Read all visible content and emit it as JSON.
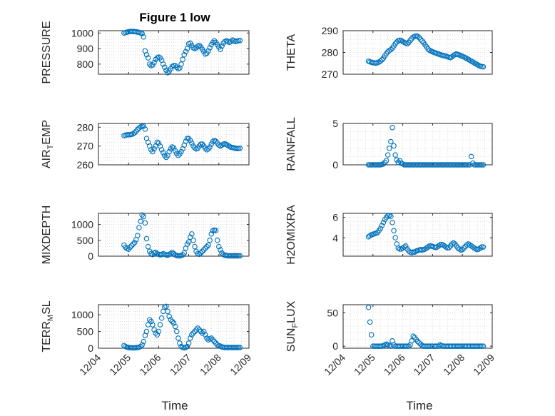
{
  "figure": {
    "title": "Figure 1 low",
    "xlabel": "Time"
  },
  "colors": {
    "marker": "#0072BD",
    "axis": "#262626",
    "grid": "#d9d9d9",
    "background": "#ffffff"
  },
  "chart_data": [
    {
      "type": "scatter",
      "id": "pressure",
      "ylabel": "PRESSURE",
      "ylim": [
        735,
        1015
      ],
      "yticks": [
        800,
        900,
        1000
      ],
      "xlim": [
        "12/04",
        "12/09"
      ],
      "xtick_labels": [],
      "grid": true,
      "x": [
        0.85,
        0.9,
        0.95,
        1.0,
        1.05,
        1.1,
        1.15,
        1.2,
        1.25,
        1.3,
        1.35,
        1.4,
        1.45,
        1.5,
        1.55,
        1.6,
        1.65,
        1.7,
        1.75,
        1.8,
        1.85,
        1.9,
        1.95,
        2.0,
        2.05,
        2.1,
        2.15,
        2.2,
        2.25,
        2.3,
        2.35,
        2.4,
        2.45,
        2.5,
        2.55,
        2.6,
        2.65,
        2.7,
        2.75,
        2.8,
        2.85,
        2.9,
        2.95,
        3.0,
        3.05,
        3.1,
        3.15,
        3.2,
        3.25,
        3.3,
        3.35,
        3.4,
        3.45,
        3.5,
        3.55,
        3.6,
        3.65,
        3.7,
        3.75,
        3.8,
        3.85,
        3.9,
        3.95,
        4.0,
        4.05,
        4.1,
        4.15,
        4.2,
        4.25,
        4.3,
        4.35,
        4.4,
        4.45,
        4.5,
        4.55,
        4.6,
        4.65,
        4.7
      ],
      "y": [
        1000,
        1003,
        1006,
        1008,
        1010,
        1010,
        1010,
        1009,
        1008,
        1006,
        1004,
        1001,
        996,
        975,
        885,
        860,
        840,
        800,
        790,
        795,
        810,
        830,
        840,
        845,
        840,
        825,
        800,
        780,
        760,
        745,
        755,
        770,
        785,
        790,
        790,
        780,
        770,
        775,
        800,
        830,
        860,
        880,
        900,
        930,
        935,
        920,
        905,
        900,
        905,
        915,
        920,
        910,
        895,
        880,
        865,
        870,
        885,
        905,
        925,
        940,
        950,
        940,
        925,
        910,
        895,
        915,
        935,
        945,
        950,
        945,
        940,
        945,
        955,
        950,
        945,
        948,
        950,
        952
      ],
      "series_name": ""
    },
    {
      "type": "scatter",
      "id": "theta",
      "ylabel": "THETA",
      "ylim": [
        270,
        290
      ],
      "yticks": [
        270,
        280,
        290
      ],
      "xlim": [
        "12/04",
        "12/09"
      ],
      "xtick_labels": [],
      "grid": true,
      "x": [
        0.85,
        0.9,
        0.95,
        1.0,
        1.05,
        1.1,
        1.15,
        1.2,
        1.25,
        1.3,
        1.35,
        1.4,
        1.45,
        1.5,
        1.55,
        1.6,
        1.65,
        1.7,
        1.75,
        1.8,
        1.85,
        1.9,
        1.95,
        2.0,
        2.05,
        2.1,
        2.15,
        2.2,
        2.25,
        2.3,
        2.35,
        2.4,
        2.45,
        2.5,
        2.55,
        2.6,
        2.65,
        2.7,
        2.75,
        2.8,
        2.85,
        2.9,
        2.95,
        3.0,
        3.05,
        3.1,
        3.15,
        3.2,
        3.25,
        3.3,
        3.35,
        3.4,
        3.45,
        3.5,
        3.55,
        3.6,
        3.65,
        3.7,
        3.75,
        3.8,
        3.85,
        3.9,
        3.95,
        4.0,
        4.05,
        4.1,
        4.15,
        4.2,
        4.25,
        4.3,
        4.35,
        4.4,
        4.45,
        4.5,
        4.55,
        4.6,
        4.65,
        4.7
      ],
      "y": [
        276.0,
        275.7,
        275.5,
        275.3,
        275.2,
        275.1,
        275.3,
        275.6,
        276.0,
        276.6,
        277.4,
        278.5,
        279.5,
        280.3,
        280.9,
        281.3,
        282.0,
        283.0,
        284.0,
        284.8,
        285.4,
        285.6,
        285.5,
        285.0,
        284.6,
        284.3,
        284.0,
        284.6,
        285.5,
        286.3,
        287.0,
        287.4,
        287.6,
        287.4,
        286.8,
        286.0,
        285.3,
        284.5,
        283.5,
        282.5,
        281.6,
        281.0,
        280.6,
        280.3,
        280.0,
        279.8,
        279.5,
        279.3,
        279.0,
        278.8,
        278.6,
        278.5,
        278.3,
        278.0,
        277.8,
        277.6,
        278.0,
        278.6,
        279.0,
        279.3,
        279.1,
        278.8,
        278.5,
        278.2,
        277.9,
        277.6,
        277.2,
        276.8,
        276.4,
        276.0,
        275.6,
        275.2,
        274.8,
        274.4,
        274.0,
        273.7,
        273.5,
        273.4
      ],
      "series_name": ""
    },
    {
      "type": "scatter",
      "id": "air_temp",
      "ylabel": "AIR_TEMP",
      "ylim": [
        260,
        282
      ],
      "yticks": [
        260,
        270,
        280
      ],
      "xlim": [
        "12/04",
        "12/09"
      ],
      "xtick_labels": [],
      "grid": true,
      "x": [
        0.85,
        0.9,
        0.95,
        1.0,
        1.05,
        1.1,
        1.15,
        1.2,
        1.25,
        1.3,
        1.35,
        1.4,
        1.45,
        1.5,
        1.55,
        1.6,
        1.65,
        1.7,
        1.75,
        1.8,
        1.85,
        1.9,
        1.95,
        2.0,
        2.05,
        2.1,
        2.15,
        2.2,
        2.25,
        2.3,
        2.35,
        2.4,
        2.45,
        2.5,
        2.55,
        2.6,
        2.65,
        2.7,
        2.75,
        2.8,
        2.85,
        2.9,
        2.95,
        3.0,
        3.05,
        3.1,
        3.15,
        3.2,
        3.25,
        3.3,
        3.35,
        3.4,
        3.45,
        3.5,
        3.55,
        3.6,
        3.65,
        3.7,
        3.75,
        3.8,
        3.85,
        3.9,
        3.95,
        4.0,
        4.05,
        4.1,
        4.15,
        4.2,
        4.25,
        4.3,
        4.35,
        4.4,
        4.45,
        4.5,
        4.55,
        4.6,
        4.65,
        4.7
      ],
      "y": [
        275.5,
        275.8,
        276.0,
        276.0,
        276.0,
        276.2,
        276.5,
        277.0,
        277.8,
        278.8,
        279.6,
        280.2,
        280.5,
        280.6,
        279.0,
        274.0,
        272.0,
        270.0,
        268.0,
        267.0,
        268.5,
        270.0,
        272.0,
        271.5,
        270.0,
        268.0,
        266.5,
        265.0,
        264.0,
        265.0,
        267.0,
        268.5,
        269.5,
        269.0,
        267.5,
        266.0,
        265.0,
        265.8,
        267.0,
        268.5,
        270.5,
        272.5,
        274.0,
        274.0,
        273.0,
        271.5,
        270.0,
        269.0,
        268.5,
        268.8,
        270.0,
        271.0,
        271.0,
        270.0,
        268.8,
        268.0,
        268.5,
        269.5,
        271.0,
        272.3,
        273.0,
        272.5,
        271.5,
        270.5,
        270.0,
        270.5,
        271.0,
        271.2,
        270.8,
        270.3,
        269.8,
        269.4,
        269.2,
        269.0,
        268.8,
        268.7,
        268.7,
        268.8
      ],
      "series_name": ""
    },
    {
      "type": "scatter",
      "id": "rainfall",
      "ylabel": "RAINFALL",
      "ylim": [
        0,
        5
      ],
      "yticks": [
        0,
        5
      ],
      "xlim": [
        "12/04",
        "12/09"
      ],
      "xtick_labels": [],
      "grid": true,
      "x": [
        0.85,
        0.9,
        0.95,
        1.0,
        1.05,
        1.1,
        1.15,
        1.2,
        1.25,
        1.3,
        1.35,
        1.4,
        1.45,
        1.5,
        1.55,
        1.6,
        1.65,
        1.7,
        1.75,
        1.8,
        1.85,
        1.9,
        1.95,
        2.0,
        2.05,
        2.1,
        2.15,
        2.2,
        2.25,
        2.3,
        2.35,
        2.4,
        2.45,
        2.5,
        2.55,
        2.6,
        2.65,
        2.7,
        2.75,
        2.8,
        2.85,
        2.9,
        2.95,
        3.0,
        3.05,
        3.1,
        3.15,
        3.2,
        3.25,
        3.3,
        3.35,
        3.4,
        3.45,
        3.5,
        3.55,
        3.6,
        3.65,
        3.7,
        3.75,
        3.8,
        3.85,
        3.9,
        3.95,
        4.0,
        4.05,
        4.1,
        4.15,
        4.2,
        4.25,
        4.3,
        4.35,
        4.4,
        4.45,
        4.5,
        4.55,
        4.6,
        4.65,
        4.7
      ],
      "y": [
        0,
        0,
        0,
        0,
        0,
        0,
        0,
        0,
        0,
        0.05,
        0.1,
        0.3,
        0.5,
        1.2,
        2.0,
        2.8,
        4.5,
        2.3,
        1.2,
        0.6,
        0.3,
        0.5,
        0.2,
        0.1,
        0,
        0,
        0,
        0,
        0,
        0,
        0,
        0,
        0,
        0,
        0,
        0,
        0,
        0,
        0,
        0,
        0,
        0,
        0,
        0,
        0,
        0,
        0,
        0,
        0,
        0,
        0,
        0,
        0,
        0,
        0,
        0,
        0,
        0,
        0,
        0,
        0,
        0,
        0,
        0,
        0,
        0,
        0,
        0,
        0,
        1.0,
        0.2,
        0,
        0,
        0,
        0,
        0,
        0,
        0
      ],
      "series_name": ""
    },
    {
      "type": "scatter",
      "id": "mixdepth",
      "ylabel": "MIXDEPTH",
      "ylim": [
        0,
        1350
      ],
      "yticks": [
        0,
        500,
        1000
      ],
      "xlim": [
        "12/04",
        "12/09"
      ],
      "xtick_labels": [],
      "grid": true,
      "x": [
        0.85,
        0.9,
        0.95,
        1.0,
        1.05,
        1.1,
        1.15,
        1.2,
        1.25,
        1.3,
        1.35,
        1.4,
        1.45,
        1.5,
        1.55,
        1.6,
        1.65,
        1.7,
        1.75,
        1.8,
        1.85,
        1.9,
        1.95,
        2.0,
        2.05,
        2.1,
        2.15,
        2.2,
        2.25,
        2.3,
        2.35,
        2.4,
        2.45,
        2.5,
        2.55,
        2.6,
        2.65,
        2.7,
        2.75,
        2.8,
        2.85,
        2.9,
        2.95,
        3.0,
        3.05,
        3.1,
        3.15,
        3.2,
        3.25,
        3.3,
        3.35,
        3.4,
        3.45,
        3.5,
        3.55,
        3.6,
        3.65,
        3.7,
        3.75,
        3.8,
        3.85,
        3.9,
        3.95,
        4.0,
        4.05,
        4.1,
        4.15,
        4.2,
        4.25,
        4.3,
        4.35,
        4.4,
        4.45,
        4.5,
        4.55,
        4.6,
        4.65,
        4.7
      ],
      "y": [
        350,
        280,
        240,
        220,
        280,
        330,
        380,
        430,
        520,
        650,
        900,
        1100,
        1300,
        1250,
        1050,
        550,
        300,
        150,
        80,
        50,
        100,
        120,
        80,
        60,
        40,
        50,
        80,
        60,
        40,
        30,
        60,
        80,
        120,
        80,
        40,
        20,
        10,
        10,
        20,
        40,
        100,
        250,
        380,
        450,
        600,
        700,
        500,
        300,
        150,
        80,
        60,
        100,
        150,
        200,
        250,
        300,
        350,
        500,
        700,
        800,
        820,
        810,
        500,
        300,
        200,
        100,
        50,
        30,
        20,
        10,
        10,
        10,
        10,
        10,
        10,
        10,
        10,
        10
      ],
      "series_name": ""
    },
    {
      "type": "scatter",
      "id": "h2omixra",
      "ylabel": "H2OMIXRA",
      "ylim": [
        2.2,
        6.4
      ],
      "yticks": [
        4,
        6
      ],
      "xlim": [
        "12/04",
        "12/09"
      ],
      "xtick_labels": [],
      "grid": true,
      "x": [
        0.85,
        0.9,
        0.95,
        1.0,
        1.05,
        1.1,
        1.15,
        1.2,
        1.25,
        1.3,
        1.35,
        1.4,
        1.45,
        1.5,
        1.55,
        1.6,
        1.65,
        1.7,
        1.75,
        1.8,
        1.85,
        1.9,
        1.95,
        2.0,
        2.05,
        2.1,
        2.15,
        2.2,
        2.25,
        2.3,
        2.35,
        2.4,
        2.45,
        2.5,
        2.55,
        2.6,
        2.65,
        2.7,
        2.75,
        2.8,
        2.85,
        2.9,
        2.95,
        3.0,
        3.05,
        3.1,
        3.15,
        3.2,
        3.25,
        3.3,
        3.35,
        3.4,
        3.45,
        3.5,
        3.55,
        3.6,
        3.65,
        3.7,
        3.75,
        3.8,
        3.85,
        3.9,
        3.95,
        4.0,
        4.05,
        4.1,
        4.15,
        4.2,
        4.25,
        4.3,
        4.35,
        4.4,
        4.45,
        4.5,
        4.55,
        4.6,
        4.65,
        4.7
      ],
      "y": [
        4.1,
        4.2,
        4.3,
        4.35,
        4.4,
        4.45,
        4.5,
        4.7,
        4.9,
        5.2,
        5.5,
        5.8,
        6.0,
        6.15,
        6.2,
        6.1,
        5.5,
        4.7,
        4.0,
        3.4,
        3.0,
        2.9,
        2.9,
        3.0,
        3.1,
        3.2,
        2.9,
        2.7,
        2.6,
        2.55,
        2.6,
        2.6,
        2.7,
        2.75,
        2.8,
        2.85,
        2.8,
        2.85,
        2.9,
        3.0,
        3.1,
        3.2,
        3.2,
        3.15,
        3.1,
        3.05,
        3.1,
        3.2,
        3.3,
        3.35,
        3.3,
        3.2,
        3.1,
        3.0,
        3.05,
        3.2,
        3.4,
        3.5,
        3.4,
        3.2,
        3.0,
        2.9,
        2.8,
        2.85,
        3.0,
        3.15,
        3.3,
        3.4,
        3.3,
        3.2,
        3.1,
        3.0,
        2.9,
        2.85,
        2.9,
        3.0,
        3.1,
        3.1
      ],
      "series_name": ""
    },
    {
      "type": "scatter",
      "id": "terr_msl",
      "ylabel": "TERR_MSL",
      "ylim": [
        0,
        1300
      ],
      "yticks": [
        0,
        500,
        1000
      ],
      "xlim": [
        "12/04",
        "12/09"
      ],
      "xtick_labels": [
        "12/04",
        "12/05",
        "12/06",
        "12/07",
        "12/08",
        "12/09"
      ],
      "grid": true,
      "x": [
        0.85,
        0.9,
        0.95,
        1.0,
        1.05,
        1.1,
        1.15,
        1.2,
        1.25,
        1.3,
        1.35,
        1.4,
        1.45,
        1.5,
        1.55,
        1.6,
        1.65,
        1.7,
        1.75,
        1.8,
        1.85,
        1.9,
        1.95,
        2.0,
        2.05,
        2.1,
        2.15,
        2.2,
        2.25,
        2.3,
        2.35,
        2.4,
        2.45,
        2.5,
        2.55,
        2.6,
        2.65,
        2.7,
        2.75,
        2.8,
        2.85,
        2.9,
        2.95,
        3.0,
        3.05,
        3.1,
        3.15,
        3.2,
        3.25,
        3.3,
        3.35,
        3.4,
        3.45,
        3.5,
        3.55,
        3.6,
        3.65,
        3.7,
        3.75,
        3.8,
        3.85,
        3.9,
        3.95,
        4.0,
        4.05,
        4.1,
        4.15,
        4.2,
        4.25,
        4.3,
        4.35,
        4.4,
        4.45,
        4.5,
        4.55,
        4.6,
        4.65,
        4.7
      ],
      "y": [
        80,
        50,
        30,
        20,
        15,
        10,
        10,
        10,
        15,
        20,
        30,
        50,
        100,
        200,
        380,
        500,
        700,
        850,
        800,
        700,
        550,
        450,
        400,
        500,
        700,
        900,
        1100,
        1230,
        1250,
        1100,
        950,
        850,
        800,
        750,
        650,
        500,
        300,
        150,
        50,
        20,
        10,
        20,
        50,
        150,
        300,
        400,
        450,
        500,
        550,
        600,
        550,
        500,
        450,
        500,
        400,
        300,
        250,
        280,
        300,
        250,
        200,
        150,
        100,
        80,
        60,
        40,
        30,
        20,
        20,
        20,
        20,
        20,
        20,
        20,
        20,
        20,
        20,
        20
      ],
      "series_name": ""
    },
    {
      "type": "scatter",
      "id": "sun_flux",
      "ylabel": "SUN_FLUX",
      "ylim": [
        -3,
        62
      ],
      "yticks": [
        0,
        50
      ],
      "xlim": [
        "12/04",
        "12/09"
      ],
      "xtick_labels": [
        "12/04",
        "12/05",
        "12/06",
        "12/07",
        "12/08",
        "12/09"
      ],
      "grid": true,
      "x": [
        0.85,
        0.9,
        0.95,
        1.0,
        1.05,
        1.1,
        1.15,
        1.2,
        1.25,
        1.3,
        1.35,
        1.4,
        1.45,
        1.5,
        1.55,
        1.6,
        1.65,
        1.7,
        1.75,
        1.8,
        1.85,
        1.9,
        1.95,
        2.0,
        2.05,
        2.1,
        2.15,
        2.2,
        2.25,
        2.3,
        2.35,
        2.4,
        2.45,
        2.5,
        2.55,
        2.6,
        2.65,
        2.7,
        2.75,
        2.8,
        2.85,
        2.9,
        2.95,
        3.0,
        3.05,
        3.1,
        3.15,
        3.2,
        3.25,
        3.3,
        3.35,
        3.4,
        3.45,
        3.5,
        3.55,
        3.6,
        3.65,
        3.7,
        3.75,
        3.8,
        3.85,
        3.9,
        3.95,
        4.0,
        4.05,
        4.1,
        4.15,
        4.2,
        4.25,
        4.3,
        4.35,
        4.4,
        4.45,
        4.5,
        4.55,
        4.6,
        4.65,
        4.7
      ],
      "y": [
        58,
        36,
        17,
        0,
        0,
        0,
        0,
        0,
        0,
        0,
        1,
        2,
        3,
        2,
        1,
        0,
        8,
        2,
        0,
        0,
        0,
        0,
        0,
        0,
        0,
        0,
        0,
        0,
        2,
        8,
        15,
        13,
        10,
        7,
        5,
        3,
        1,
        0,
        0,
        0,
        0,
        0,
        0,
        0,
        0,
        0,
        0,
        0,
        2,
        1,
        0,
        0,
        0,
        0,
        0,
        0,
        0,
        0,
        0,
        0,
        0,
        0,
        0,
        0,
        0,
        0,
        0,
        0,
        0,
        0,
        0,
        0,
        0,
        0,
        0,
        0,
        0,
        0
      ],
      "series_name": ""
    }
  ]
}
